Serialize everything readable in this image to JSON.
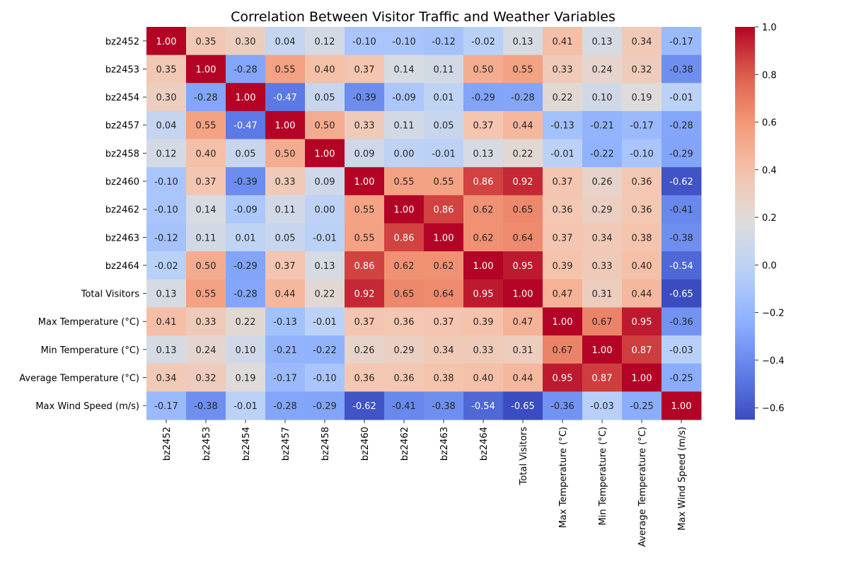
{
  "chart_data": {
    "type": "heatmap",
    "title": "Correlation Between Visitor Traffic and Weather Variables",
    "row_labels": [
      "bz2452",
      "bz2453",
      "bz2454",
      "bz2457",
      "bz2458",
      "bz2460",
      "bz2462",
      "bz2463",
      "bz2464",
      "Total Visitors",
      "Max Temperature (°C)",
      "Min Temperature (°C)",
      "Average Temperature (°C)",
      "Max Wind Speed (m/s)"
    ],
    "col_labels": [
      "bz2452",
      "bz2453",
      "bz2454",
      "bz2457",
      "bz2458",
      "bz2460",
      "bz2462",
      "bz2463",
      "bz2464",
      "Total Visitors",
      "Max Temperature (°C)",
      "Min Temperature (°C)",
      "Average Temperature (°C)",
      "Max Wind Speed (m/s)"
    ],
    "values": [
      [
        1.0,
        0.35,
        0.3,
        0.04,
        0.12,
        -0.1,
        -0.1,
        -0.12,
        -0.02,
        0.13,
        0.41,
        0.13,
        0.34,
        -0.17
      ],
      [
        0.35,
        1.0,
        -0.28,
        0.55,
        0.4,
        0.37,
        0.14,
        0.11,
        0.5,
        0.55,
        0.33,
        0.24,
        0.32,
        -0.38
      ],
      [
        0.3,
        -0.28,
        1.0,
        -0.47,
        0.05,
        -0.39,
        -0.09,
        0.01,
        -0.29,
        -0.28,
        0.22,
        0.1,
        0.19,
        -0.01
      ],
      [
        0.04,
        0.55,
        -0.47,
        1.0,
        0.5,
        0.33,
        0.11,
        0.05,
        0.37,
        0.44,
        -0.13,
        -0.21,
        -0.17,
        -0.28
      ],
      [
        0.12,
        0.4,
        0.05,
        0.5,
        1.0,
        0.09,
        0.0,
        -0.01,
        0.13,
        0.22,
        -0.01,
        -0.22,
        -0.1,
        -0.29
      ],
      [
        -0.1,
        0.37,
        -0.39,
        0.33,
        0.09,
        1.0,
        0.55,
        0.55,
        0.86,
        0.92,
        0.37,
        0.26,
        0.36,
        -0.62
      ],
      [
        -0.1,
        0.14,
        -0.09,
        0.11,
        0.0,
        0.55,
        1.0,
        0.86,
        0.62,
        0.65,
        0.36,
        0.29,
        0.36,
        -0.41
      ],
      [
        -0.12,
        0.11,
        0.01,
        0.05,
        -0.01,
        0.55,
        0.86,
        1.0,
        0.62,
        0.64,
        0.37,
        0.34,
        0.38,
        -0.38
      ],
      [
        -0.02,
        0.5,
        -0.29,
        0.37,
        0.13,
        0.86,
        0.62,
        0.62,
        1.0,
        0.95,
        0.39,
        0.33,
        0.4,
        -0.54
      ],
      [
        0.13,
        0.55,
        -0.28,
        0.44,
        0.22,
        0.92,
        0.65,
        0.64,
        0.95,
        1.0,
        0.47,
        0.31,
        0.44,
        -0.65
      ],
      [
        0.41,
        0.33,
        0.22,
        -0.13,
        -0.01,
        0.37,
        0.36,
        0.37,
        0.39,
        0.47,
        1.0,
        0.67,
        0.95,
        -0.36
      ],
      [
        0.13,
        0.24,
        0.1,
        -0.21,
        -0.22,
        0.26,
        0.29,
        0.34,
        0.33,
        0.31,
        0.67,
        1.0,
        0.87,
        -0.03
      ],
      [
        0.34,
        0.32,
        0.19,
        -0.17,
        -0.1,
        0.36,
        0.36,
        0.38,
        0.4,
        0.44,
        0.95,
        0.87,
        1.0,
        -0.25
      ],
      [
        -0.17,
        -0.38,
        -0.01,
        -0.28,
        -0.29,
        -0.62,
        -0.41,
        -0.38,
        -0.54,
        -0.65,
        -0.36,
        -0.03,
        -0.25,
        1.0
      ]
    ],
    "color_scale": "coolwarm",
    "vmin": -0.65,
    "vmax": 1.0,
    "colorbar_ticks": [
      1.0,
      0.8,
      0.6,
      0.4,
      0.2,
      0.0,
      -0.2,
      -0.4,
      -0.6
    ],
    "colorbar_tick_labels": [
      "1.0",
      "0.8",
      "0.6",
      "0.4",
      "0.2",
      "0.0",
      "−0.2",
      "−0.4",
      "−0.6"
    ],
    "annotations": true,
    "value_format": "2 decimals",
    "legend_position": "right"
  }
}
